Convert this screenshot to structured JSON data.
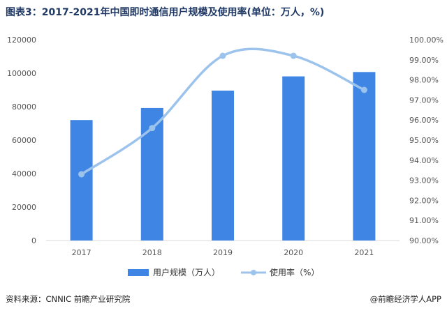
{
  "title": "图表3：2017-2021年中国即时通信用户规模及使用率(单位：万人，%)",
  "footer": {
    "source": "资料来源：CNNIC 前瞻产业研究院",
    "brand": "@前瞻经济学人APP"
  },
  "colors": {
    "bar": "#3f86e4",
    "line": "#9cc3ec"
  },
  "chart_data": {
    "type": "bar",
    "categories": [
      "2017",
      "2018",
      "2019",
      "2020",
      "2021"
    ],
    "y_left": {
      "ylim": [
        0,
        120000
      ],
      "ticks": [
        "0",
        "20000",
        "40000",
        "60000",
        "80000",
        "100000",
        "120000"
      ]
    },
    "y_right": {
      "ylim": [
        90,
        100
      ],
      "ticks": [
        "90.00%",
        "91.00%",
        "92.00%",
        "93.00%",
        "94.00%",
        "95.00%",
        "96.00%",
        "97.00%",
        "98.00%",
        "99.00%",
        "100.00%"
      ]
    },
    "series": [
      {
        "name": "用户规模（万人）",
        "type": "bar",
        "axis": "left",
        "values": [
          72000,
          79200,
          89600,
          98100,
          100700
        ]
      },
      {
        "name": "使用率（%）",
        "type": "line",
        "axis": "right",
        "values": [
          93.3,
          95.6,
          99.2,
          99.2,
          97.5
        ]
      }
    ]
  }
}
